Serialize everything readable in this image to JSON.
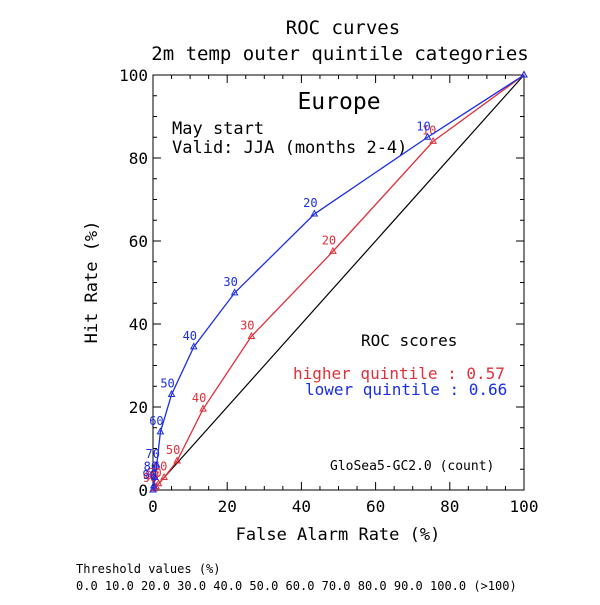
{
  "chart_data": {
    "type": "line",
    "title": "ROC curves",
    "subtitle": "2m temp outer quintile categories",
    "region": "Europe",
    "start_label": "May start",
    "valid_label": "Valid: JJA (months 2-4)",
    "xlabel": "False Alarm Rate (%)",
    "ylabel": "Hit Rate (%)",
    "xlim": [
      0,
      100
    ],
    "ylim": [
      0,
      100
    ],
    "x_ticks": [
      "0",
      "20",
      "40",
      "60",
      "80",
      "100"
    ],
    "y_ticks": [
      "0",
      "20",
      "40",
      "60",
      "80",
      "100"
    ],
    "grid": false,
    "scores_heading": "ROC scores",
    "model_label": "GloSea5-GC2.0 (count)",
    "threshold_heading": "Threshold values (%)",
    "threshold_values": "0.0 10.0 20.0 30.0 40.0 50.0 60.0 70.0 80.0 90.0 100.0 (>100)",
    "diagonal_color": "#000000",
    "series": [
      {
        "name": "higher quintile",
        "score_label": "higher quintile : 0.57",
        "color": "#e0303a",
        "x": [
          100,
          75.5,
          48.5,
          26.5,
          13.5,
          6.5,
          3.0,
          1.5,
          0.8,
          0.3,
          0.0
        ],
        "y": [
          100,
          84.0,
          57.5,
          37.0,
          19.5,
          7.0,
          3.0,
          1.5,
          0.8,
          0.3,
          0.0
        ],
        "labels": [
          "",
          "10",
          "20",
          "30",
          "40",
          "50",
          "60",
          "70",
          "80",
          "90",
          ""
        ]
      },
      {
        "name": "lower quintile",
        "score_label": "lower quintile : 0.66",
        "color": "#1a2ee6",
        "x": [
          100,
          74.0,
          43.5,
          22.0,
          11.0,
          5.0,
          2.0,
          1.0,
          0.5,
          0.2,
          0.0
        ],
        "y": [
          100,
          85.0,
          66.5,
          47.5,
          34.5,
          23.0,
          14.0,
          6.0,
          3.0,
          1.0,
          0.0
        ],
        "labels": [
          "",
          "10",
          "20",
          "30",
          "40",
          "50",
          "60",
          "70",
          "80",
          "90",
          ""
        ]
      }
    ]
  }
}
